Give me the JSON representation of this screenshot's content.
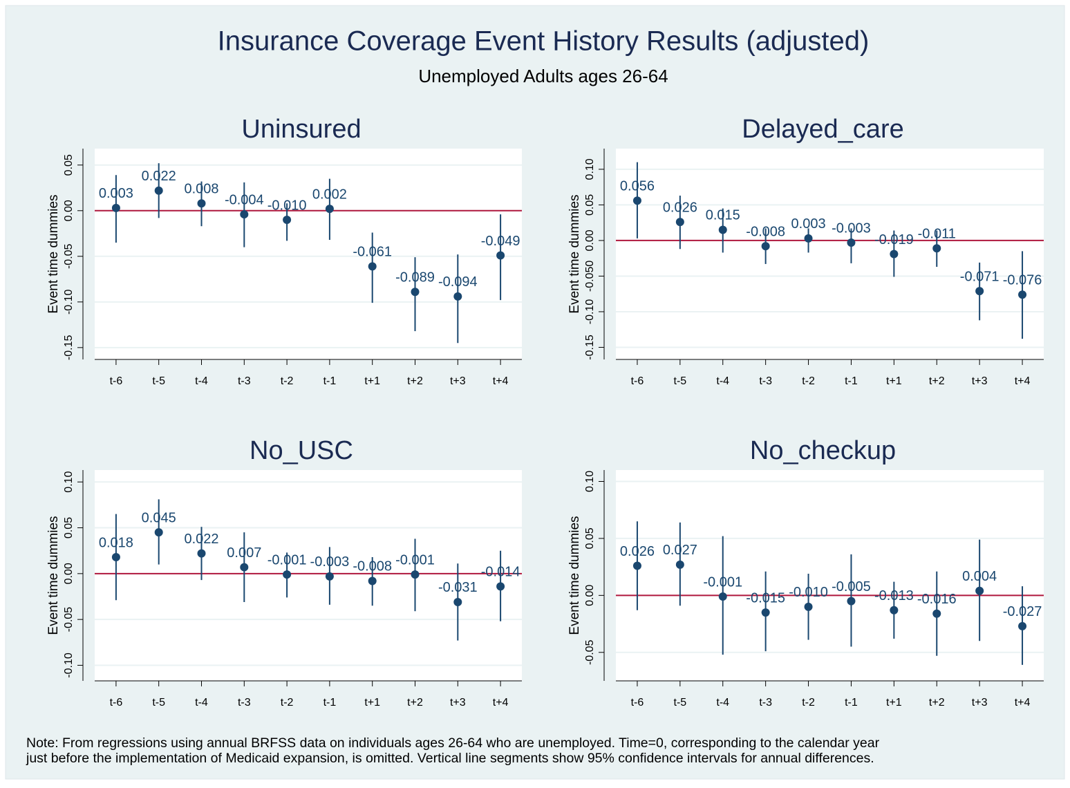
{
  "title": "Insurance Coverage Event History Results (adjusted)",
  "subtitle": "Unemployed Adults ages 26-64",
  "note": [
    "Note: From regressions using annual BRFSS data on individuals ages 26-64 who are unemployed. Time=0, corresponding to the calendar year",
    "just before the implementation of Medicaid expansion, is omitted. Vertical line segments show 95% confidence intervals for annual differences."
  ],
  "chart_data": [
    {
      "type": "errorbar",
      "title": "Uninsured",
      "ylabel": "Event time dummies",
      "color": "#1a476f",
      "hline": 0,
      "hline_color": "#b0173d",
      "grid": true,
      "categories": [
        "t-6",
        "t-5",
        "t-4",
        "t-3",
        "t-2",
        "t-1",
        "t+1",
        "t+2",
        "t+3",
        "t+4"
      ],
      "values": [
        0.003,
        0.022,
        0.008,
        -0.004,
        -0.01,
        0.002,
        -0.061,
        -0.089,
        -0.094,
        -0.049
      ],
      "value_labels": [
        "0.003",
        "0.022",
        "0.008",
        "-0.004",
        "-0.010",
        "0.002",
        "-0.061",
        "-0.089",
        "-0.094",
        "-0.049"
      ],
      "ci_low": [
        -0.035,
        -0.008,
        -0.017,
        -0.04,
        -0.033,
        -0.032,
        -0.101,
        -0.132,
        -0.145,
        -0.098
      ],
      "ci_high": [
        0.039,
        0.052,
        0.032,
        0.031,
        0.008,
        0.035,
        -0.024,
        -0.051,
        -0.048,
        -0.004
      ],
      "ylim": [
        -0.163,
        0.068
      ],
      "yticks": [
        0.05,
        {
          "value": 0,
          "label": "0.00"
        },
        -0.05,
        {
          "value": -0.1,
          "label": "-0.10"
        },
        -0.15
      ]
    },
    {
      "type": "errorbar",
      "title": "Delayed_care",
      "ylabel": "Event time dummies",
      "color": "#1a476f",
      "hline": 0,
      "hline_color": "#b0173d",
      "grid": true,
      "categories": [
        "t-6",
        "t-5",
        "t-4",
        "t-3",
        "t-2",
        "t-1",
        "t+1",
        "t+2",
        "t+3",
        "t+4"
      ],
      "values": [
        0.056,
        0.026,
        0.015,
        -0.008,
        0.003,
        -0.003,
        -0.019,
        -0.011,
        -0.071,
        -0.076
      ],
      "value_labels": [
        "0.056",
        "0.026",
        "0.015",
        "-0.008",
        "0.003",
        "-0.003",
        "-0.019",
        "-0.011",
        "-0.071",
        "-0.076"
      ],
      "ci_low": [
        0.003,
        -0.012,
        -0.017,
        -0.033,
        -0.017,
        -0.032,
        -0.051,
        -0.037,
        -0.112,
        -0.138
      ],
      "ci_high": [
        0.11,
        0.063,
        0.045,
        0.017,
        0.017,
        0.017,
        0.014,
        0.014,
        -0.031,
        -0.015
      ],
      "ylim": [
        -0.167,
        0.129
      ],
      "yticks": [
        {
          "value": 0.1,
          "label": "0.10"
        },
        0.05,
        {
          "value": 0,
          "label": "0.00"
        },
        {
          "value": -0.05,
          "label": "-0.050"
        },
        {
          "value": -0.1,
          "label": "-0.10"
        },
        -0.15
      ]
    },
    {
      "type": "errorbar",
      "title": "No_USC",
      "ylabel": "Event time dummies",
      "color": "#1a476f",
      "hline": 0,
      "hline_color": "#b0173d",
      "grid": true,
      "categories": [
        "t-6",
        "t-5",
        "t-4",
        "t-3",
        "t-2",
        "t-1",
        "t+1",
        "t+2",
        "t+3",
        "t+4"
      ],
      "values": [
        0.018,
        0.045,
        0.022,
        0.007,
        -0.001,
        -0.003,
        -0.008,
        -0.001,
        -0.031,
        -0.014
      ],
      "value_labels": [
        "0.018",
        "0.045",
        "0.022",
        "0.007",
        "-0.001",
        "-0.003",
        "-0.008",
        "-0.001",
        "-0.031",
        "-0.014"
      ],
      "ci_low": [
        -0.029,
        0.01,
        -0.007,
        -0.031,
        -0.026,
        -0.034,
        -0.035,
        -0.041,
        -0.073,
        -0.052
      ],
      "ci_high": [
        0.065,
        0.081,
        0.051,
        0.045,
        0.023,
        0.029,
        0.018,
        0.038,
        0.011,
        0.025
      ],
      "ylim": [
        -0.117,
        0.113
      ],
      "yticks": [
        {
          "value": 0.1,
          "label": "0.10"
        },
        0.05,
        {
          "value": 0,
          "label": "0.00"
        },
        -0.05,
        {
          "value": -0.1,
          "label": "-0.10"
        }
      ]
    },
    {
      "type": "errorbar",
      "title": "No_checkup",
      "ylabel": "Event time dummies",
      "color": "#1a476f",
      "hline": 0,
      "hline_color": "#b0173d",
      "grid": true,
      "categories": [
        "t-6",
        "t-5",
        "t-4",
        "t-3",
        "t-2",
        "t-1",
        "t+1",
        "t+2",
        "t+3",
        "t+4"
      ],
      "values": [
        0.026,
        0.027,
        -0.001,
        -0.015,
        -0.01,
        -0.005,
        -0.013,
        -0.016,
        0.004,
        -0.027
      ],
      "value_labels": [
        "0.026",
        "0.027",
        "-0.001",
        "-0.015",
        "-0.010",
        "-0.005",
        "-0.013",
        "-0.016",
        "0.004",
        "-0.027"
      ],
      "ci_low": [
        -0.013,
        -0.009,
        -0.052,
        -0.049,
        -0.039,
        -0.045,
        -0.038,
        -0.053,
        -0.04,
        -0.061
      ],
      "ci_high": [
        0.065,
        0.064,
        0.052,
        0.021,
        0.019,
        0.036,
        0.012,
        0.021,
        0.049,
        0.008
      ],
      "ylim": [
        -0.075,
        0.11
      ],
      "yticks": [
        {
          "value": 0.1,
          "label": "0.10"
        },
        0.05,
        {
          "value": 0,
          "label": "0.00"
        },
        -0.05
      ]
    }
  ]
}
